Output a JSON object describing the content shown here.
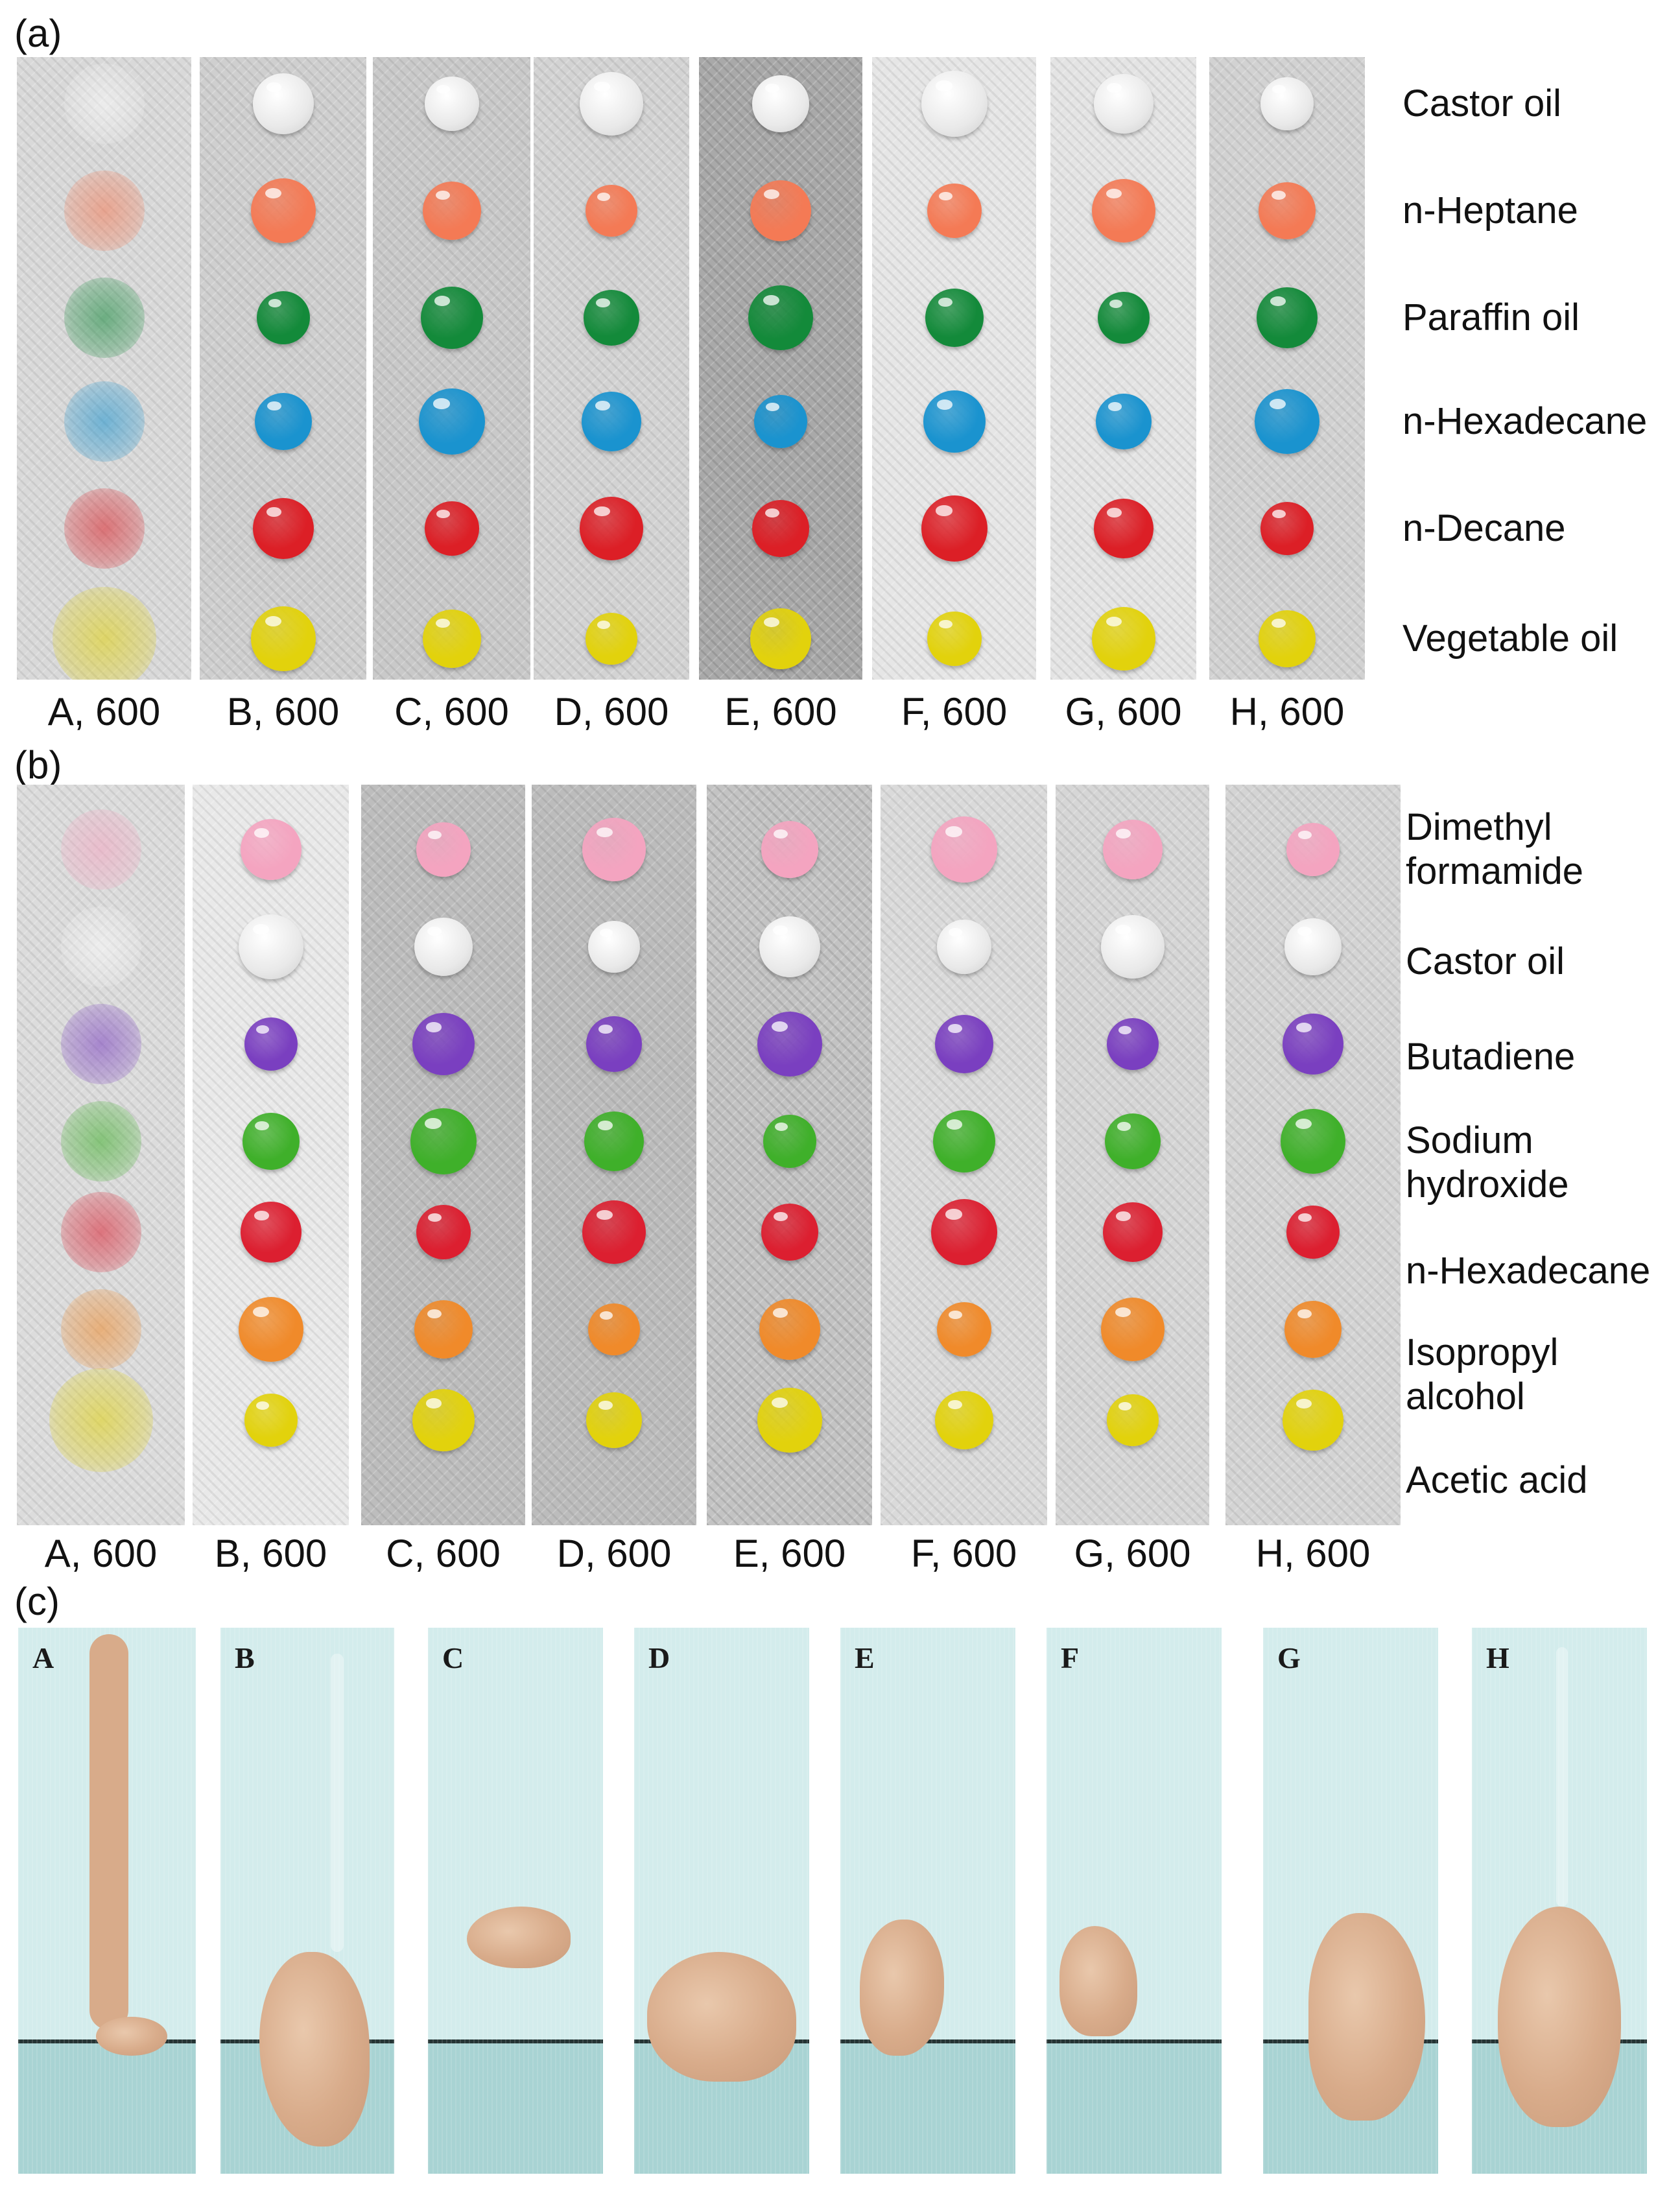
{
  "panel_labels": {
    "a": "(a)",
    "b": "(b)",
    "c": "(c)"
  },
  "panel_a": {
    "strips": [
      {
        "caption": "A, 600",
        "bg": "#d9d9d9"
      },
      {
        "caption": "B, 600",
        "bg": "#cfcfcf"
      },
      {
        "caption": "C, 600",
        "bg": "#c9c9c9"
      },
      {
        "caption": "D, 600",
        "bg": "#d3d3d3"
      },
      {
        "caption": "E, 600",
        "bg": "#a9a9a9"
      },
      {
        "caption": "F, 600",
        "bg": "#e6e6e6"
      },
      {
        "caption": "G, 600",
        "bg": "#e4e4e4"
      },
      {
        "caption": "H, 600",
        "bg": "#d2d2d2"
      }
    ],
    "liquids": [
      "Castor oil",
      "n-Heptane",
      "Paraffin oil",
      "n-Hexadecane",
      "n-Decane",
      "Vegetable oil"
    ],
    "colors": [
      "#eeeeee",
      "#f47a55",
      "#138a3a",
      "#1a93cf",
      "#dc1f26",
      "#e2d20c"
    ]
  },
  "panel_b": {
    "strips": [
      {
        "caption": "A, 600",
        "bg": "#dcdcdc"
      },
      {
        "caption": "B, 600",
        "bg": "#e9e9e9"
      },
      {
        "caption": "C, 600",
        "bg": "#bdbdbd"
      },
      {
        "caption": "D, 600",
        "bg": "#bcbcbc"
      },
      {
        "caption": "E, 600",
        "bg": "#c3c3c3"
      },
      {
        "caption": "F, 600",
        "bg": "#dadada"
      },
      {
        "caption": "G, 600",
        "bg": "#d6d6d6"
      },
      {
        "caption": "H, 600",
        "bg": "#d4d4d4"
      }
    ],
    "liquids": [
      "Dimethyl\nformamide",
      "Castor oil",
      "Butadiene",
      "Sodium\nhydroxide",
      "n-Hexadecane",
      "Isopropyl\nalcohol",
      "Acetic acid"
    ],
    "colors": [
      "#f4a4c0",
      "#f2f2f2",
      "#7a3fc0",
      "#3fb02a",
      "#dc1f30",
      "#f08a2a",
      "#e2d20c"
    ]
  },
  "panel_c": {
    "samples": [
      "A",
      "B",
      "C",
      "D",
      "E",
      "F",
      "G",
      "H"
    ],
    "colors": {
      "sand": "#d8ab8a",
      "fabric_top": "#d3ecec",
      "fabric_bottom": "#a8d3d3",
      "edge": "#243434"
    }
  }
}
